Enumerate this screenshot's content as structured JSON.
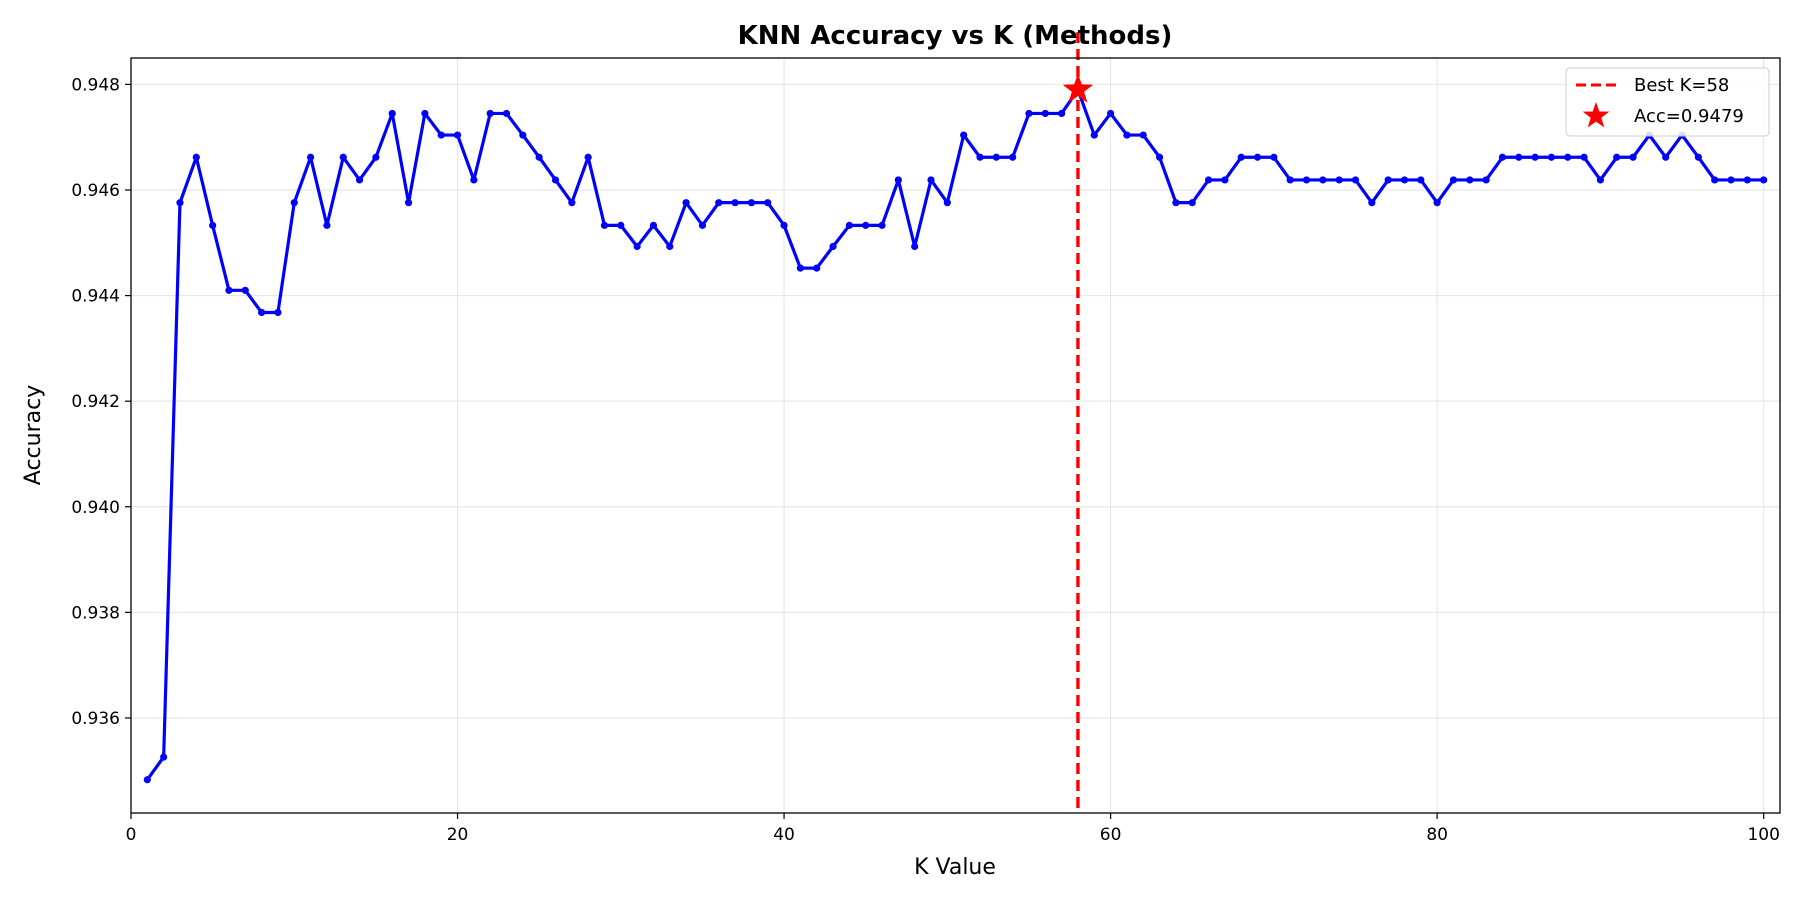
{
  "chart_data": {
    "type": "line",
    "title": "KNN Accuracy vs K (Methods)",
    "xlabel": "K Value",
    "ylabel": "Accuracy",
    "xlim": [
      0,
      101
    ],
    "ylim": [
      0.9342,
      0.9485
    ],
    "x_ticks": [
      0,
      20,
      40,
      60,
      80,
      100
    ],
    "y_ticks": [
      0.936,
      0.938,
      0.94,
      0.942,
      0.944,
      0.946,
      0.948
    ],
    "x_tick_labels": [
      "0",
      "20",
      "40",
      "60",
      "80",
      "100"
    ],
    "y_tick_labels": [
      "0.936",
      "0.938",
      "0.940",
      "0.942",
      "0.944",
      "0.946",
      "0.948"
    ],
    "grid": true,
    "legend_position": "top-right",
    "series": [
      {
        "color": "#0000ff",
        "marker": "circle",
        "x": [
          1,
          2,
          3,
          4,
          5,
          6,
          7,
          8,
          9,
          10,
          11,
          12,
          13,
          14,
          15,
          16,
          17,
          18,
          19,
          20,
          21,
          22,
          23,
          24,
          25,
          26,
          27,
          28,
          29,
          30,
          31,
          32,
          33,
          34,
          35,
          36,
          37,
          38,
          39,
          40,
          41,
          42,
          43,
          44,
          45,
          46,
          47,
          48,
          49,
          50,
          51,
          52,
          53,
          54,
          55,
          56,
          57,
          58,
          59,
          60,
          61,
          62,
          63,
          64,
          65,
          66,
          67,
          68,
          69,
          70,
          71,
          72,
          73,
          74,
          75,
          76,
          77,
          78,
          79,
          80,
          81,
          82,
          83,
          84,
          85,
          86,
          87,
          88,
          89,
          90,
          91,
          92,
          93,
          94,
          95,
          96,
          97,
          98,
          99,
          100
        ],
        "values": [
          0.93483,
          0.93526,
          0.94576,
          0.94662,
          0.94533,
          0.9441,
          0.9441,
          0.94368,
          0.94368,
          0.94576,
          0.94662,
          0.94533,
          0.94662,
          0.94619,
          0.94662,
          0.94745,
          0.94576,
          0.94745,
          0.94704,
          0.94704,
          0.94619,
          0.94745,
          0.94745,
          0.94704,
          0.94662,
          0.94619,
          0.94576,
          0.94662,
          0.94533,
          0.94533,
          0.94493,
          0.94533,
          0.94493,
          0.94576,
          0.94533,
          0.94576,
          0.94576,
          0.94576,
          0.94576,
          0.94533,
          0.94452,
          0.94452,
          0.94493,
          0.94533,
          0.94533,
          0.94533,
          0.94619,
          0.94493,
          0.94619,
          0.94576,
          0.94704,
          0.94662,
          0.94662,
          0.94662,
          0.94745,
          0.94745,
          0.94745,
          0.9479,
          0.94704,
          0.94745,
          0.94704,
          0.94704,
          0.94662,
          0.94576,
          0.94576,
          0.94619,
          0.94619,
          0.94662,
          0.94662,
          0.94662,
          0.94619,
          0.94619,
          0.94619,
          0.94619,
          0.94619,
          0.94576,
          0.94619,
          0.94619,
          0.94619,
          0.94576,
          0.94619,
          0.94619,
          0.94619,
          0.94662,
          0.94662,
          0.94662,
          0.94662,
          0.94662,
          0.94662,
          0.94619,
          0.94662,
          0.94662,
          0.94704,
          0.94662,
          0.94704,
          0.94662,
          0.94619,
          0.94619,
          0.94619,
          0.94619
        ]
      }
    ],
    "best_k_line": {
      "x": 58,
      "color": "#ff0000",
      "style": "dashed",
      "label": "Best K=58"
    },
    "best_point": {
      "x": 58,
      "y": 0.9479,
      "color": "#ff0000",
      "marker": "star",
      "label": "Acc=0.9479"
    }
  }
}
